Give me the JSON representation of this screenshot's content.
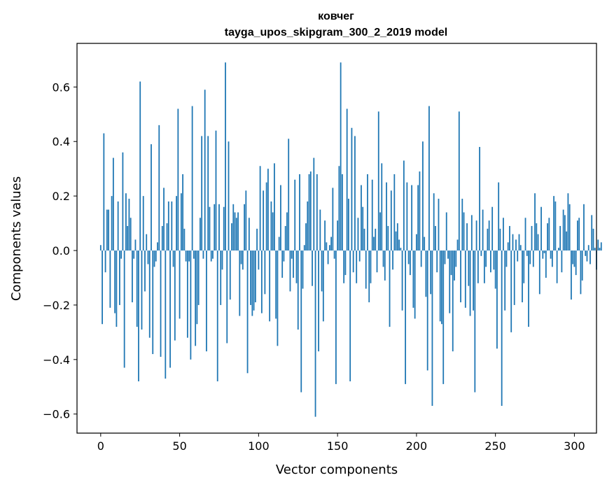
{
  "chart_data": {
    "type": "bar",
    "title": "ковчег",
    "subtitle": "tayga_upos_skipgram_300_2_2019 model",
    "xlabel": "Vector components",
    "ylabel": "Components values",
    "xlim": [
      -15,
      314
    ],
    "ylim": [
      -0.67,
      0.76
    ],
    "x_ticks": [
      0,
      50,
      100,
      150,
      200,
      250,
      300
    ],
    "y_ticks": [
      -0.6,
      -0.4,
      -0.2,
      0.0,
      0.2,
      0.4,
      0.6
    ],
    "x_tick_labels": [
      "0",
      "50",
      "100",
      "150",
      "200",
      "250",
      "300"
    ],
    "y_tick_labels": [
      "−0.6",
      "−0.4",
      "−0.2",
      "0.0",
      "0.2",
      "0.4",
      "0.6"
    ],
    "grid": false,
    "bar_color": "#1f77b4",
    "values": [
      0.02,
      -0.27,
      0.43,
      -0.08,
      0.15,
      0.15,
      -0.21,
      0.2,
      0.34,
      -0.23,
      -0.28,
      0.18,
      -0.2,
      -0.03,
      0.36,
      -0.43,
      0.21,
      0.09,
      0.19,
      0.12,
      -0.19,
      -0.03,
      0.04,
      -0.28,
      -0.48,
      0.62,
      -0.29,
      0.2,
      -0.15,
      0.06,
      -0.05,
      -0.32,
      0.39,
      -0.38,
      -0.06,
      -0.04,
      0.03,
      0.46,
      -0.39,
      0.09,
      0.23,
      -0.47,
      0.1,
      0.18,
      -0.43,
      0.18,
      -0.06,
      -0.33,
      0.2,
      0.52,
      -0.25,
      0.21,
      0.28,
      0.08,
      -0.04,
      -0.32,
      -0.04,
      -0.4,
      0.53,
      -0.03,
      -0.35,
      -0.27,
      -0.2,
      0.12,
      0.42,
      -0.03,
      0.59,
      -0.37,
      0.42,
      0.16,
      -0.04,
      -0.03,
      0.17,
      0.44,
      -0.48,
      0.17,
      -0.2,
      -0.07,
      0.16,
      0.69,
      -0.34,
      0.4,
      -0.18,
      0.1,
      0.17,
      0.14,
      0.12,
      0.14,
      -0.24,
      -0.05,
      -0.07,
      0.17,
      0.22,
      -0.45,
      0.12,
      -0.2,
      -0.24,
      -0.22,
      -0.19,
      0.08,
      -0.07,
      0.31,
      -0.23,
      0.22,
      -0.16,
      0.25,
      0.3,
      -0.26,
      0.18,
      0.14,
      0.32,
      -0.25,
      -0.35,
      0.05,
      0.24,
      -0.1,
      -0.04,
      0.09,
      0.14,
      0.41,
      -0.15,
      -0.03,
      -0.1,
      0.26,
      -0.12,
      -0.29,
      0.28,
      -0.52,
      -0.14,
      0.02,
      0.1,
      0.18,
      0.28,
      0.29,
      -0.13,
      0.34,
      -0.61,
      0.28,
      -0.37,
      0.15,
      -0.15,
      -0.26,
      0.11,
      0.03,
      -0.05,
      0.02,
      0.05,
      0.23,
      -0.03,
      -0.49,
      0.11,
      0.31,
      0.69,
      0.28,
      -0.12,
      -0.09,
      0.52,
      0.19,
      -0.48,
      0.45,
      -0.08,
      0.42,
      -0.12,
      0.12,
      -0.04,
      0.24,
      0.16,
      0.08,
      -0.14,
      0.28,
      -0.19,
      -0.12,
      0.26,
      0.05,
      0.08,
      -0.08,
      0.51,
      0.14,
      0.32,
      -0.06,
      -0.11,
      0.25,
      0.09,
      -0.28,
      0.22,
      -0.07,
      0.28,
      0.07,
      0.1,
      0.04,
      0.01,
      -0.22,
      0.33,
      -0.49,
      0.25,
      -0.05,
      -0.09,
      0.24,
      -0.21,
      -0.25,
      0.06,
      0.24,
      0.29,
      -0.06,
      0.4,
      0.05,
      -0.17,
      -0.44,
      0.53,
      -0.16,
      -0.57,
      0.21,
      0.09,
      -0.08,
      0.19,
      -0.26,
      -0.27,
      -0.49,
      -0.05,
      0.14,
      -0.03,
      -0.23,
      -0.09,
      -0.37,
      -0.11,
      -0.06,
      0.04,
      0.51,
      -0.19,
      0.19,
      0.14,
      -0.21,
      0.1,
      -0.13,
      -0.24,
      0.13,
      -0.22,
      -0.52,
      0.11,
      -0.12,
      0.38,
      -0.02,
      0.15,
      -0.12,
      -0.06,
      0.08,
      0.11,
      -0.08,
      0.16,
      -0.07,
      -0.14,
      -0.36,
      0.25,
      0.08,
      -0.57,
      0.12,
      -0.22,
      -0.06,
      0.03,
      0.09,
      -0.3,
      0.06,
      -0.2,
      0.04,
      -0.04,
      0.06,
      0.02,
      -0.19,
      -0.12,
      0.12,
      -0.02,
      -0.28,
      -0.05,
      0.09,
      -0.06,
      0.21,
      0.1,
      0.06,
      -0.16,
      0.16,
      -0.03,
      -0.01,
      -0.1,
      0.1,
      0.12,
      -0.03,
      -0.06,
      0.2,
      0.18,
      -0.12,
      0.01,
      0.09,
      -0.08,
      0.15,
      0.13,
      0.07,
      0.21,
      0.17,
      -0.18,
      -0.05,
      -0.06,
      -0.09,
      0.11,
      0.12,
      -0.16,
      -0.11,
      0.17,
      -0.02,
      -0.04,
      0.02,
      -0.05,
      0.13,
      0.08,
      0.01,
      -0.07,
      0.04,
      0.01,
      0.03
    ]
  }
}
